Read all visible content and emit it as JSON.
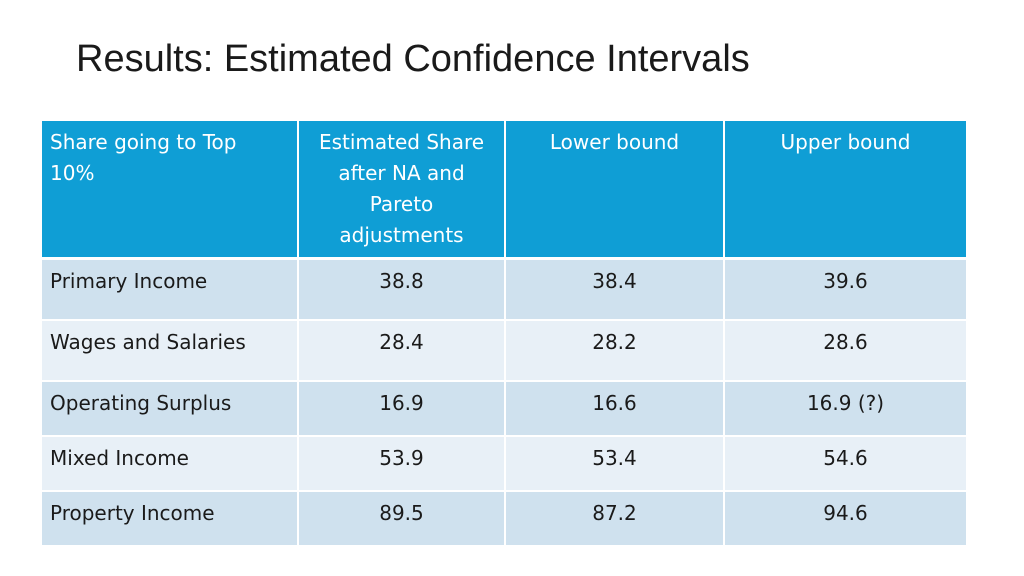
{
  "slide": {
    "title": "Results: Estimated Confidence Intervals"
  },
  "table": {
    "headers": [
      "Share going to Top 10%",
      "Estimated Share after NA and Pareto adjustments",
      "Lower bound",
      "Upper bound"
    ],
    "rows": [
      {
        "category": "Primary Income",
        "estimate": "38.8",
        "lower": "38.4",
        "upper": "39.6"
      },
      {
        "category": "Wages and Salaries",
        "estimate": "28.4",
        "lower": "28.2",
        "upper": "28.6"
      },
      {
        "category": "Operating Surplus",
        "estimate": "16.9",
        "lower": "16.6",
        "upper": "16.9 (?)"
      },
      {
        "category": "Mixed Income",
        "estimate": "53.9",
        "lower": "53.4",
        "upper": "54.6"
      },
      {
        "category": "Property Income",
        "estimate": "89.5",
        "lower": "87.2",
        "upper": "94.6"
      }
    ]
  },
  "colors": {
    "header_background": "#0f9ed5",
    "header_text": "#ffffff",
    "row_band_dark": "#cfe1ee",
    "row_band_light": "#e8f0f7"
  }
}
